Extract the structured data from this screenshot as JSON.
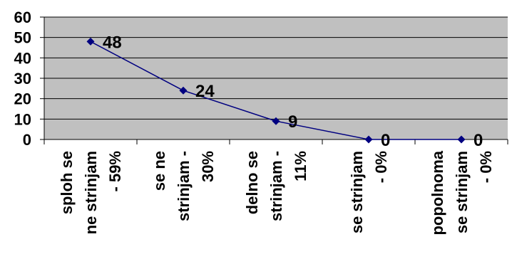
{
  "chart_data": {
    "type": "line",
    "categories": [
      [
        "sploh se",
        "ne strinjam",
        "- 59%"
      ],
      [
        "se ne",
        "strinjam -",
        "30%"
      ],
      [
        "delno se",
        "strinjam -",
        "11%"
      ],
      [
        "se strinjam",
        "- 0%"
      ],
      [
        "popolnoma",
        "se strinjam",
        "- 0%"
      ]
    ],
    "series": [
      {
        "values": [
          48,
          24,
          9,
          0,
          0
        ],
        "data_labels": [
          "48",
          "24",
          "9",
          "0",
          "0"
        ]
      }
    ],
    "y_ticks": [
      "0",
      "10",
      "20",
      "30",
      "40",
      "50",
      "60"
    ],
    "ylim": [
      0,
      60
    ],
    "grid": true,
    "legend": "none",
    "colors": {
      "plot_background": "#c0c0c0",
      "gridline": "#000000",
      "line": "#000080",
      "marker": "#000080"
    }
  }
}
